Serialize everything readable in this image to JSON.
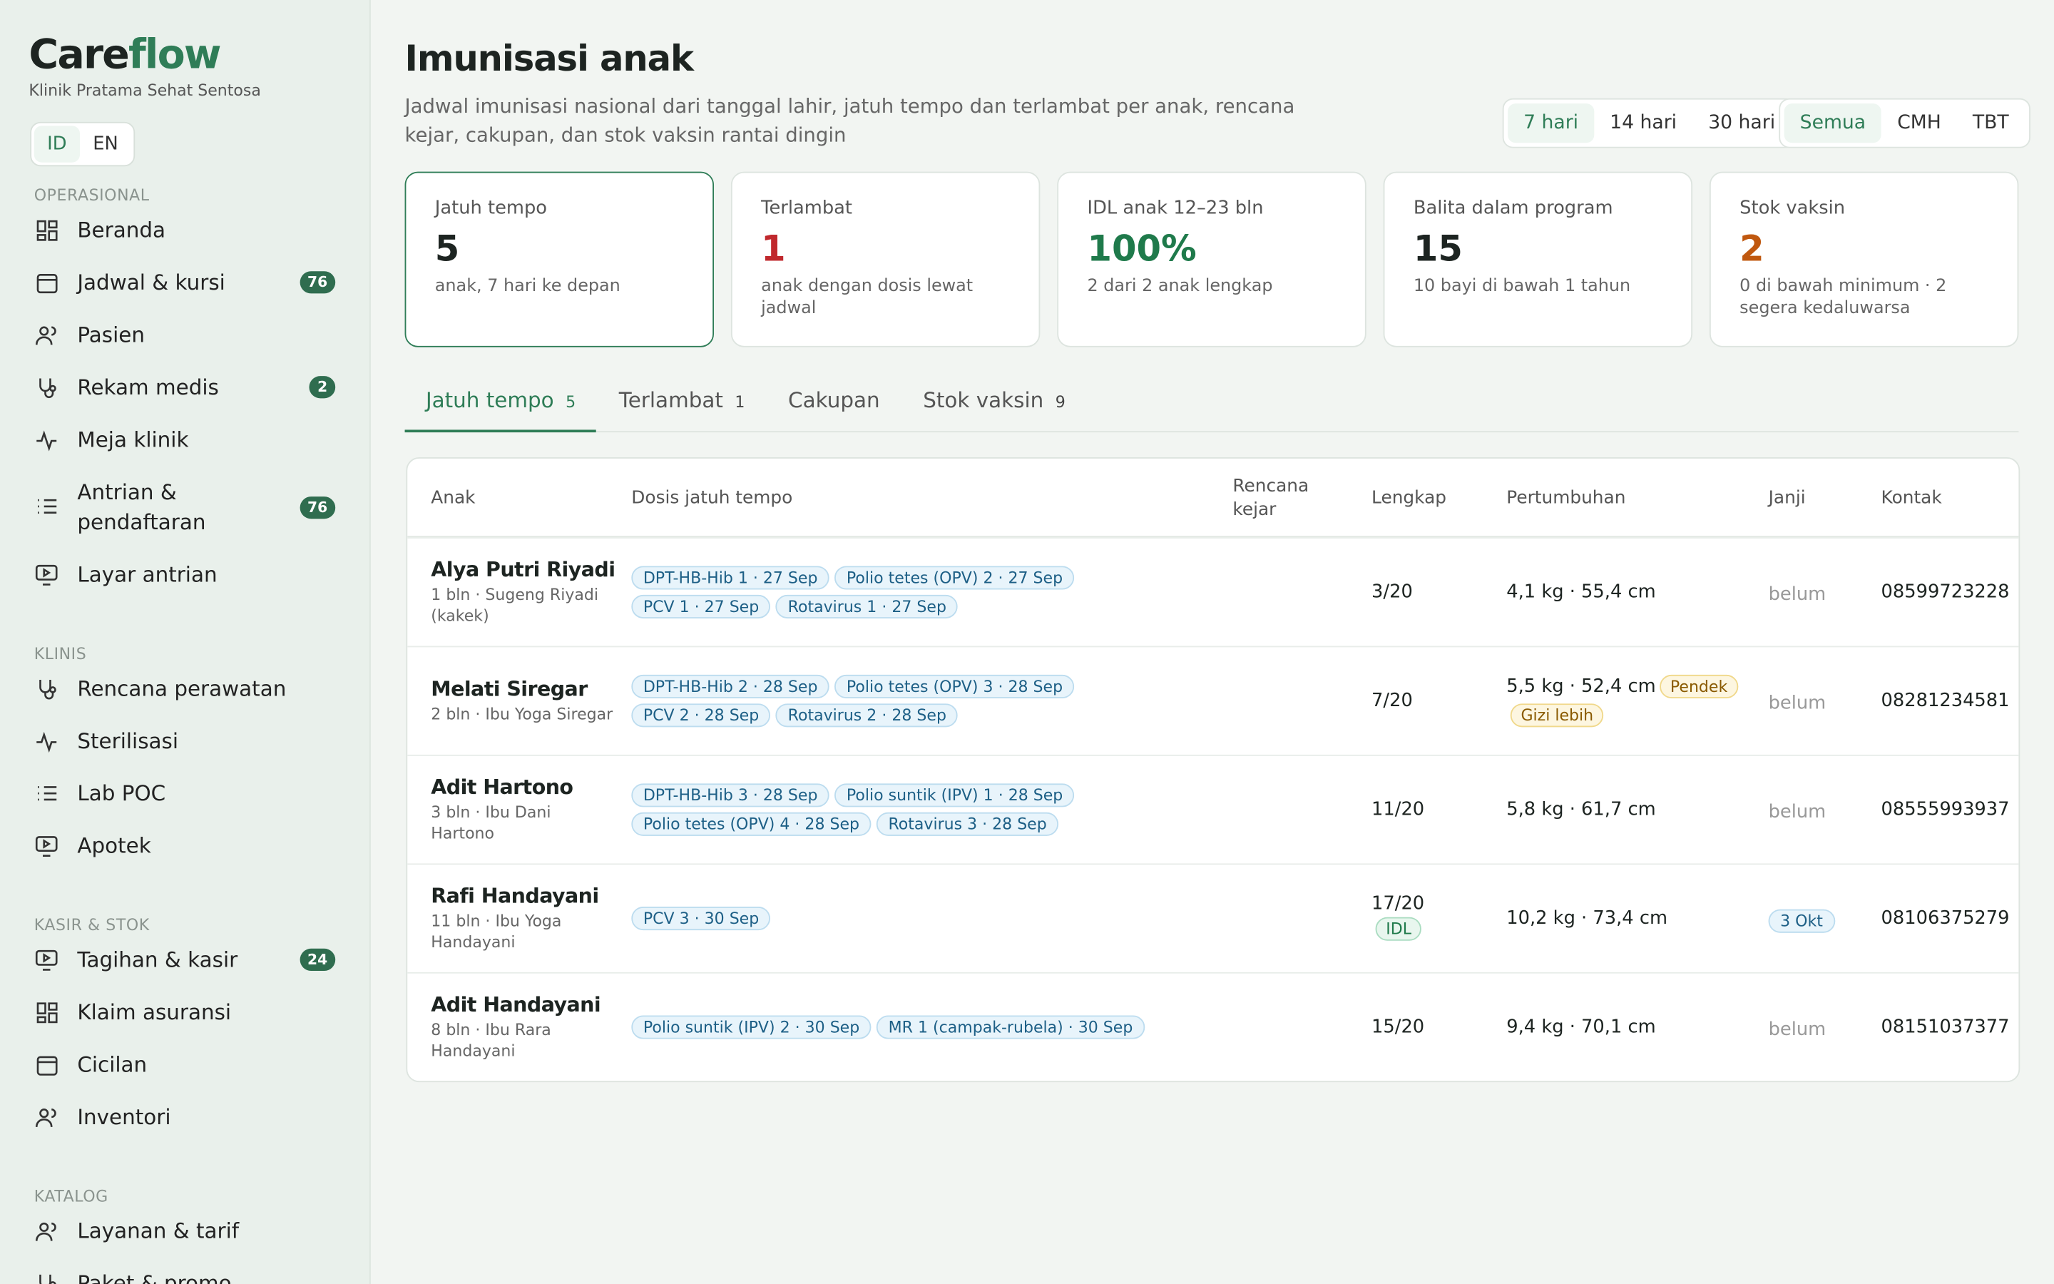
{
  "sidebar": {
    "brand": {
      "lead": "Care",
      "accent": "flow"
    },
    "clinic": "Klinik Pratama Sehat Sentosa",
    "languages": [
      "ID",
      "EN"
    ],
    "sections": [
      {
        "title": "OPERASIONAL",
        "items": [
          {
            "label": "Beranda"
          },
          {
            "label": "Jadwal & kursi",
            "badge": 76
          },
          {
            "label": "Pasien"
          },
          {
            "label": "Rekam medis",
            "badge": 2
          },
          {
            "label": "Meja klinik"
          },
          {
            "label": "Antrian & pendaftaran",
            "badge": 76
          },
          {
            "label": "Layar antrian"
          }
        ]
      },
      {
        "title": "KLINIS",
        "items": [
          {
            "label": "Rencana perawatan"
          },
          {
            "label": "Sterilisasi"
          },
          {
            "label": "Lab POC"
          },
          {
            "label": "Apotek"
          }
        ]
      },
      {
        "title": "KASIR & STOK",
        "items": [
          {
            "label": "Tagihan & kasir",
            "badge": 24
          },
          {
            "label": "Klaim asuransi"
          },
          {
            "label": "Cicilan"
          },
          {
            "label": "Inventori"
          }
        ]
      },
      {
        "title": "KATALOG",
        "items": [
          {
            "label": "Layanan & tarif"
          },
          {
            "label": "Paket & promo"
          }
        ]
      }
    ]
  },
  "header": {
    "title": "Imunisasi anak",
    "subtitle": "Jadwal imunisasi nasional dari tanggal lahir, jatuh tempo dan terlambat per anak, rencana kejar, cakupan, dan stok vaksin rantai dingin",
    "ranges": [
      "7 hari",
      "14 hari",
      "30 hari"
    ],
    "filters": [
      "Semua",
      "CMH",
      "TBT"
    ]
  },
  "kpis": [
    {
      "label": "Jatuh tempo",
      "value": 5,
      "note": "anak, 7 hari ke depan"
    },
    {
      "label": "Terlambat",
      "value": 1,
      "note": "anak dengan dosis lewat jadwal"
    },
    {
      "label": "IDL anak 12–23 bln",
      "value": "100%",
      "note": "2 dari 2 anak lengkap"
    },
    {
      "label": "Balita dalam program",
      "value": 15,
      "note": "10 bayi di bawah 1 tahun"
    },
    {
      "label": "Stok vaksin",
      "value": 2,
      "note": "0 di bawah minimum · 2 segera kedaluwarsa"
    }
  ],
  "tabs": [
    {
      "label": "Jatuh tempo",
      "count": 5
    },
    {
      "label": "Terlambat",
      "count": 1
    },
    {
      "label": "Cakupan"
    },
    {
      "label": "Stok vaksin",
      "count": 9
    }
  ],
  "table": {
    "columns": [
      "Anak",
      "Dosis jatuh tempo",
      "Rencana kejar",
      "Lengkap",
      "Pertumbuhan",
      "Janji",
      "Kontak"
    ],
    "rows": [
      {
        "name": "Alya Putri Riyadi",
        "meta": "1 bln · Sugeng Riyadi (kakek)",
        "doses": [
          "DPT-HB-Hib 1 · 27 Sep",
          "Polio tetes (OPV) 2 · 27 Sep",
          "PCV 1 · 27 Sep",
          "Rotavirus 1 · 27 Sep"
        ],
        "complete": "3/20",
        "growth": "4,1 kg · 55,4 cm",
        "appointment": "belum",
        "contact": "08599723228"
      },
      {
        "name": "Melati Siregar",
        "meta": "2 bln · Ibu Yoga Siregar",
        "doses": [
          "DPT-HB-Hib 2 · 28 Sep",
          "Polio tetes (OPV) 3 · 28 Sep",
          "PCV 2 · 28 Sep",
          "Rotavirus 2 · 28 Sep"
        ],
        "complete": "7/20",
        "growth": "5,5 kg · 52,4 cm",
        "growth_tags": [
          "Pendek",
          "Gizi lebih"
        ],
        "appointment": "belum",
        "contact": "08281234581"
      },
      {
        "name": "Adit Hartono",
        "meta": "3 bln · Ibu Dani Hartono",
        "doses": [
          "DPT-HB-Hib 3 · 28 Sep",
          "Polio suntik (IPV) 1 · 28 Sep",
          "Polio tetes (OPV) 4 · 28 Sep",
          "Rotavirus 3 · 28 Sep"
        ],
        "complete": "11/20",
        "growth": "5,8 kg · 61,7 cm",
        "appointment": "belum",
        "contact": "08555993937"
      },
      {
        "name": "Rafi Handayani",
        "meta": "11 bln · Ibu Yoga Handayani",
        "doses": [
          "PCV 3 · 30 Sep"
        ],
        "complete": "17/20",
        "complete_tag": "IDL",
        "growth": "10,2 kg · 73,4 cm",
        "appointment": "3 Okt",
        "appointment_set": true,
        "contact": "08106375279"
      },
      {
        "name": "Adit Handayani",
        "meta": "8 bln · Ibu Rara Handayani",
        "doses": [
          "Polio suntik (IPV) 2 · 30 Sep",
          "MR 1 (campak-rubela) · 30 Sep"
        ],
        "complete": "15/20",
        "growth": "9,4 kg · 70,1 cm",
        "appointment": "belum",
        "contact": "08151037377"
      }
    ]
  }
}
